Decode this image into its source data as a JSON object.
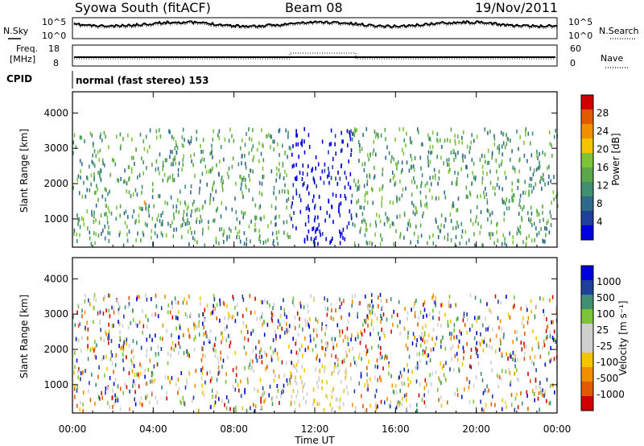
{
  "header": {
    "title": "Syowa South (fitACF)",
    "beam": "Beam 08",
    "date": "19/Nov/2011"
  },
  "top_panels": {
    "nsky_label": "N.Sky",
    "nsky_ticks": [
      "10^5",
      "10^0"
    ],
    "nsearch_label": "N.Search",
    "nsearch_ticks": [
      "10^5",
      "10^0"
    ],
    "freq_label": "Freq.",
    "freq_unit": "[MHz]",
    "freq_ticks": [
      "18",
      "8"
    ],
    "nave_label": "Nave",
    "nave_ticks": [
      "60",
      "0"
    ],
    "cpid_label": "CPID",
    "cpid_text": "normal (fast stereo) 153"
  },
  "colors": {
    "power": [
      "#0000dd",
      "#1f3f9c",
      "#2f6a8c",
      "#3f8f70",
      "#5aa84a",
      "#7cc43a",
      "#f5c400",
      "#f08f00",
      "#e05a00",
      "#d00000"
    ],
    "velocity": [
      "#d00000",
      "#e05a00",
      "#f08f00",
      "#f5c400",
      "#cfcfcf",
      "#cfcfcf",
      "#7cc43a",
      "#3f8f70",
      "#1f3f9c",
      "#0000dd"
    ]
  },
  "chart_data": [
    {
      "type": "heatmap",
      "name": "power",
      "title": "",
      "xlabel": "",
      "ylabel": "Slant Range [km]",
      "xlim": [
        0,
        24
      ],
      "ylim": [
        200,
        4600
      ],
      "yticks": [
        "1000",
        "2000",
        "3000",
        "4000"
      ],
      "colorbar_label": "Power [dB]",
      "colorbar_ticks": [
        "4",
        "8",
        "12",
        "16",
        "20",
        "24",
        "28"
      ],
      "clim": [
        0,
        30
      ]
    },
    {
      "type": "heatmap",
      "name": "velocity",
      "title": "",
      "xlabel": "Time UT",
      "ylabel": "Slant Range [km]",
      "xlim": [
        0,
        24
      ],
      "ylim": [
        200,
        4600
      ],
      "xticks": [
        "00:00",
        "04:00",
        "08:00",
        "12:00",
        "16:00",
        "20:00",
        "00:00"
      ],
      "yticks": [
        "1000",
        "2000",
        "3000",
        "4000"
      ],
      "colorbar_label": "Velocity [m s⁻¹]",
      "colorbar_ticks": [
        "1000",
        "500",
        "100",
        "25",
        "-25",
        "-100",
        "-500",
        "-1000"
      ]
    }
  ]
}
